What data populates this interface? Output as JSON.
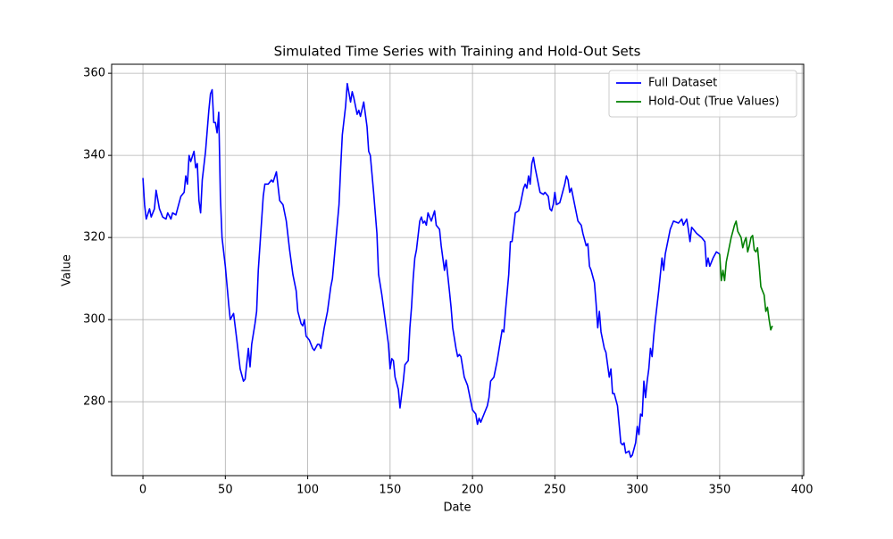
{
  "chart_data": {
    "type": "line",
    "title": "Simulated Time Series with Training and Hold-Out Sets",
    "xlabel": "Date",
    "ylabel": "Value",
    "xlim": [
      -19,
      401
    ],
    "ylim": [
      262,
      362.2
    ],
    "xticks": [
      0,
      50,
      100,
      150,
      200,
      250,
      300,
      350,
      400
    ],
    "yticks": [
      280,
      300,
      320,
      340,
      360
    ],
    "grid": true,
    "legend": "upper right",
    "series": [
      {
        "name": "Full Dataset",
        "color": "#0000ff",
        "x": [
          0,
          1,
          2,
          4,
          5,
          7,
          8,
          10,
          12,
          14,
          15,
          17,
          18,
          20,
          21,
          23,
          25,
          26,
          27,
          28,
          29,
          31,
          32,
          33,
          34,
          35,
          36,
          38,
          40,
          41,
          42,
          43,
          44,
          45,
          46,
          47,
          48,
          50,
          52,
          53,
          55,
          57,
          59,
          61,
          62,
          64,
          65,
          66,
          68,
          69,
          70,
          72,
          73,
          74,
          76,
          78,
          79,
          81,
          83,
          85,
          87,
          89,
          91,
          93,
          94,
          96,
          97,
          98,
          99,
          101,
          103,
          104,
          106,
          107,
          108,
          110,
          112,
          114,
          115,
          117,
          119,
          120,
          121,
          123,
          124,
          126,
          127,
          128,
          130,
          131,
          132,
          134,
          136,
          137,
          138,
          140,
          142,
          143,
          145,
          147,
          149,
          150,
          151,
          152,
          153,
          155,
          156,
          158,
          159,
          161,
          162,
          163,
          164,
          165,
          166,
          168,
          169,
          170,
          171,
          172,
          173,
          175,
          177,
          178,
          180,
          181,
          183,
          184,
          186,
          187,
          188,
          190,
          191,
          192,
          193,
          195,
          196,
          197,
          199,
          200,
          202,
          203,
          204,
          205,
          207,
          209,
          210,
          211,
          213,
          215,
          217,
          218,
          219,
          220,
          222,
          223,
          224,
          226,
          228,
          229,
          231,
          232,
          233,
          234,
          235,
          236,
          237,
          238,
          240,
          241,
          243,
          244,
          246,
          247,
          248,
          249,
          250,
          251,
          253,
          254,
          256,
          257,
          258,
          259,
          260,
          262,
          264,
          266,
          267,
          269,
          270,
          271,
          272,
          274,
          275,
          276,
          277,
          278,
          280,
          281,
          283,
          284,
          285,
          286,
          288,
          290,
          291,
          292,
          293,
          295,
          296,
          297,
          299,
          300,
          301,
          302,
          303,
          304,
          305,
          306,
          307,
          308,
          309,
          310,
          311,
          313,
          315,
          316,
          317,
          320,
          322,
          325,
          327,
          328,
          330,
          331,
          332,
          333,
          336,
          339,
          341,
          342,
          343,
          344,
          346,
          348,
          350
        ],
        "values": [
          334.5,
          328,
          324.5,
          327,
          325,
          327,
          331.5,
          327,
          325,
          324.5,
          326,
          324.5,
          326,
          325.5,
          327,
          330,
          331,
          335,
          333,
          340,
          338.5,
          341,
          337,
          338,
          329,
          326,
          334,
          341,
          351,
          355,
          356,
          348,
          348,
          345.5,
          350.5,
          330,
          320,
          313,
          304,
          300,
          301.5,
          295,
          288,
          285,
          285.5,
          293,
          288.5,
          294,
          299,
          302,
          312,
          324,
          330,
          333,
          333,
          334,
          333.5,
          336,
          329,
          328,
          324,
          317,
          311,
          307,
          302,
          299,
          298.5,
          300,
          296,
          295,
          293,
          292.5,
          294,
          294,
          293,
          298,
          302,
          308,
          310,
          319,
          328,
          337,
          345,
          352,
          357.5,
          353,
          355.5,
          354,
          350,
          351,
          349.5,
          353,
          347,
          341,
          340,
          331,
          321,
          311,
          306,
          300,
          294,
          288,
          290.5,
          290,
          286,
          283,
          278.5,
          285,
          289,
          290,
          298,
          303,
          310,
          315,
          317,
          324,
          325,
          323.5,
          324,
          323,
          326,
          324,
          326.5,
          323,
          322,
          318,
          312,
          314.5,
          307,
          303,
          298,
          293,
          291,
          291.5,
          291,
          286,
          285,
          284,
          280,
          278,
          277,
          274.5,
          276,
          275,
          277,
          279,
          281,
          285,
          286,
          290,
          295,
          297.5,
          297,
          302,
          311,
          319,
          319,
          326,
          326.5,
          328,
          332,
          333,
          332,
          335,
          333,
          338,
          339.5,
          337,
          333,
          331,
          330.5,
          331,
          330,
          327,
          326.5,
          328,
          331,
          328,
          328.5,
          330,
          333,
          335,
          334,
          331,
          332,
          328,
          324,
          323,
          321,
          318,
          318.5,
          313,
          312,
          309,
          304,
          298,
          302,
          297,
          293,
          292,
          286,
          288,
          282,
          282,
          279,
          270,
          269.5,
          270,
          267.5,
          268,
          266.5,
          267,
          270,
          274,
          272,
          277,
          276.5,
          285,
          281,
          285,
          288,
          293,
          291,
          296,
          300,
          307,
          315,
          312,
          316,
          322,
          324,
          323.5,
          324.5,
          323,
          324.5,
          322,
          319,
          322.5,
          321,
          320,
          319,
          313,
          315,
          313,
          315,
          316.5,
          316
        ]
      },
      {
        "name": "Hold-Out (True Values)",
        "color": "#008000",
        "x": [
          350,
          351,
          352,
          353,
          354,
          356,
          357,
          359,
          360,
          361,
          363,
          364,
          365,
          366,
          367,
          368,
          369,
          370,
          371,
          372,
          373,
          374,
          375,
          377,
          378,
          379,
          380,
          381,
          382
        ],
        "values": [
          316,
          309.5,
          312,
          309.5,
          314,
          318,
          320,
          323,
          324,
          321.5,
          320,
          317.5,
          319,
          320,
          316.5,
          318,
          320,
          320.5,
          317,
          316.5,
          317.5,
          313,
          308,
          306,
          302,
          303,
          300,
          297.5,
          298.5
        ]
      }
    ]
  }
}
